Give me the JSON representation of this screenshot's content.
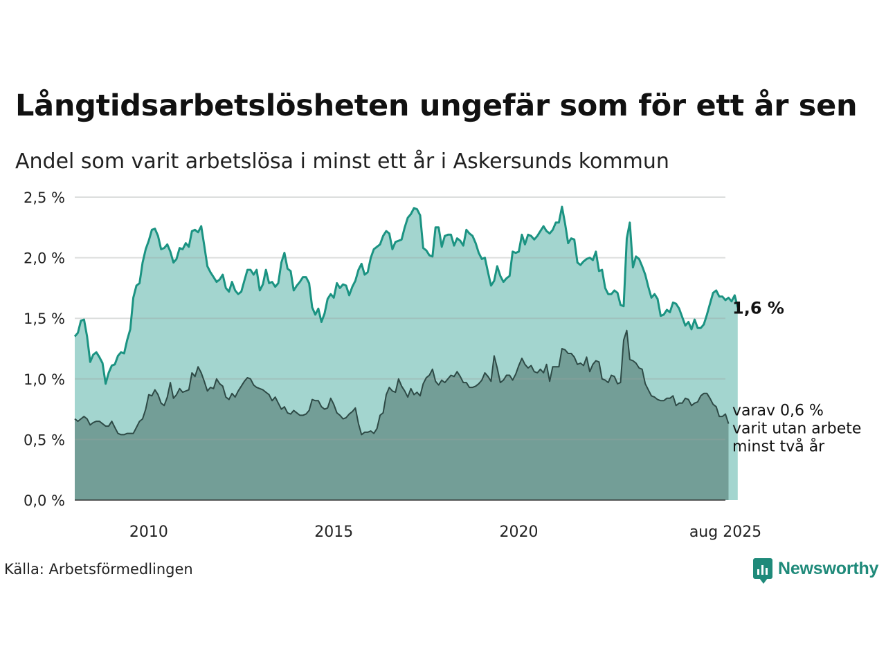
{
  "title": "Långtidsarbetslösheten ungefär som för ett år sen",
  "subtitle": "Andel som varit arbetslösa i minst ett år i Askersunds kommun",
  "source": "Källa: Arbetsförmedlingen",
  "logo": {
    "text": "Newsworthy",
    "icon": "newsworthy-logo-icon",
    "color": "#1f8a7a"
  },
  "chart_data": {
    "type": "area",
    "ylim": [
      0,
      2.5
    ],
    "y_ticks": [
      "0,0 %",
      "0,5 %",
      "1,0 %",
      "1,5 %",
      "2,0 %",
      "2,5 %"
    ],
    "y_tick_values": [
      0,
      0.5,
      1.0,
      1.5,
      2.0,
      2.5
    ],
    "x_ticks": [
      "2010",
      "2015",
      "2020",
      "aug 2025"
    ],
    "x_tick_values": [
      2010.0,
      2015.0,
      2020.0,
      2025.583
    ],
    "x_range": [
      2008.0,
      2025.583
    ],
    "grid": true,
    "colors": {
      "upper_fill": "#a3d5cf",
      "upper_line": "#1b9382",
      "lower_fill": "#739e97",
      "lower_line": "#2e4a46"
    },
    "series": [
      {
        "label_value": "1,6 %",
        "x_start": "2008-01",
        "step": "month",
        "values": [
          1.35,
          1.38,
          1.48,
          1.49,
          1.35,
          1.14,
          1.2,
          1.22,
          1.18,
          1.13,
          0.96,
          1.05,
          1.11,
          1.12,
          1.19,
          1.22,
          1.21,
          1.32,
          1.41,
          1.67,
          1.77,
          1.79,
          1.96,
          2.07,
          2.14,
          2.23,
          2.24,
          2.18,
          2.07,
          2.08,
          2.11,
          2.05,
          1.96,
          1.99,
          2.08,
          2.07,
          2.12,
          2.09,
          2.22,
          2.23,
          2.21,
          2.26,
          2.1,
          1.93,
          1.88,
          1.84,
          1.8,
          1.82,
          1.86,
          1.75,
          1.72,
          1.8,
          1.73,
          1.7,
          1.72,
          1.81,
          1.9,
          1.9,
          1.86,
          1.9,
          1.73,
          1.78,
          1.9,
          1.79,
          1.8,
          1.76,
          1.79,
          1.96,
          2.04,
          1.91,
          1.89,
          1.73,
          1.77,
          1.8,
          1.84,
          1.84,
          1.79,
          1.59,
          1.53,
          1.58,
          1.47,
          1.54,
          1.66,
          1.7,
          1.67,
          1.79,
          1.75,
          1.78,
          1.77,
          1.69,
          1.76,
          1.81,
          1.9,
          1.95,
          1.86,
          1.88,
          2.0,
          2.07,
          2.09,
          2.11,
          2.18,
          2.22,
          2.2,
          2.07,
          2.13,
          2.14,
          2.15,
          2.25,
          2.33,
          2.36,
          2.41,
          2.4,
          2.35,
          2.08,
          2.06,
          2.02,
          2.01,
          2.25,
          2.25,
          2.09,
          2.18,
          2.19,
          2.19,
          2.1,
          2.16,
          2.14,
          2.1,
          2.23,
          2.2,
          2.18,
          2.12,
          2.04,
          1.99,
          2.0,
          1.88,
          1.77,
          1.81,
          1.93,
          1.85,
          1.8,
          1.83,
          1.85,
          2.05,
          2.04,
          2.05,
          2.19,
          2.11,
          2.19,
          2.18,
          2.15,
          2.18,
          2.22,
          2.26,
          2.22,
          2.2,
          2.23,
          2.29,
          2.29,
          2.42,
          2.28,
          2.12,
          2.16,
          2.15,
          1.96,
          1.94,
          1.97,
          1.99,
          2.0,
          1.98,
          2.05,
          1.89,
          1.9,
          1.75,
          1.7,
          1.7,
          1.73,
          1.71,
          1.61,
          1.6,
          2.16,
          2.29,
          1.92,
          2.01,
          1.99,
          1.93,
          1.86,
          1.76,
          1.67,
          1.7,
          1.66,
          1.52,
          1.53,
          1.57,
          1.55,
          1.63,
          1.62,
          1.58,
          1.51,
          1.44,
          1.47,
          1.41,
          1.49,
          1.42,
          1.42,
          1.45,
          1.53,
          1.62,
          1.71,
          1.73,
          1.68,
          1.68,
          1.65,
          1.67,
          1.64,
          1.69,
          1.59
        ]
      },
      {
        "label": "varav 0,6 % varit utan arbete minst två år",
        "label_lines": [
          "varav 0,6 %",
          "varit utan arbete",
          "minst två år"
        ],
        "x_start": "2008-01",
        "step": "month",
        "values": [
          0.67,
          0.65,
          0.67,
          0.69,
          0.67,
          0.62,
          0.64,
          0.65,
          0.65,
          0.63,
          0.61,
          0.61,
          0.65,
          0.6,
          0.55,
          0.54,
          0.54,
          0.55,
          0.55,
          0.55,
          0.6,
          0.65,
          0.67,
          0.75,
          0.87,
          0.86,
          0.91,
          0.87,
          0.8,
          0.78,
          0.85,
          0.97,
          0.84,
          0.87,
          0.92,
          0.89,
          0.9,
          0.91,
          1.05,
          1.02,
          1.1,
          1.05,
          0.98,
          0.9,
          0.93,
          0.92,
          1.0,
          0.96,
          0.94,
          0.85,
          0.83,
          0.88,
          0.85,
          0.9,
          0.94,
          0.98,
          1.01,
          1.0,
          0.95,
          0.93,
          0.92,
          0.91,
          0.89,
          0.87,
          0.82,
          0.85,
          0.8,
          0.75,
          0.77,
          0.72,
          0.71,
          0.74,
          0.72,
          0.7,
          0.7,
          0.71,
          0.74,
          0.83,
          0.82,
          0.82,
          0.77,
          0.75,
          0.76,
          0.84,
          0.79,
          0.72,
          0.7,
          0.67,
          0.68,
          0.71,
          0.73,
          0.76,
          0.63,
          0.54,
          0.56,
          0.56,
          0.57,
          0.55,
          0.59,
          0.7,
          0.72,
          0.87,
          0.93,
          0.9,
          0.89,
          1.0,
          0.94,
          0.9,
          0.85,
          0.92,
          0.87,
          0.89,
          0.86,
          0.96,
          1.01,
          1.03,
          1.08,
          0.98,
          0.95,
          0.99,
          0.97,
          1.0,
          1.03,
          1.02,
          1.06,
          1.02,
          0.97,
          0.97,
          0.93,
          0.93,
          0.94,
          0.96,
          0.99,
          1.05,
          1.02,
          0.98,
          1.19,
          1.09,
          0.97,
          0.99,
          1.03,
          1.03,
          0.99,
          1.04,
          1.11,
          1.17,
          1.12,
          1.09,
          1.11,
          1.06,
          1.05,
          1.08,
          1.05,
          1.12,
          0.98,
          1.1,
          1.1,
          1.1,
          1.25,
          1.24,
          1.21,
          1.21,
          1.18,
          1.12,
          1.13,
          1.11,
          1.18,
          1.06,
          1.12,
          1.15,
          1.14,
          1.0,
          0.99,
          0.97,
          1.03,
          1.02,
          0.96,
          0.97,
          1.32,
          1.4,
          1.16,
          1.15,
          1.13,
          1.09,
          1.08,
          0.96,
          0.91,
          0.86,
          0.85,
          0.83,
          0.82,
          0.82,
          0.84,
          0.84,
          0.86,
          0.78,
          0.8,
          0.8,
          0.84,
          0.83,
          0.78,
          0.8,
          0.81,
          0.86,
          0.88,
          0.88,
          0.84,
          0.79,
          0.77,
          0.69,
          0.69,
          0.71,
          0.63
        ]
      }
    ]
  }
}
